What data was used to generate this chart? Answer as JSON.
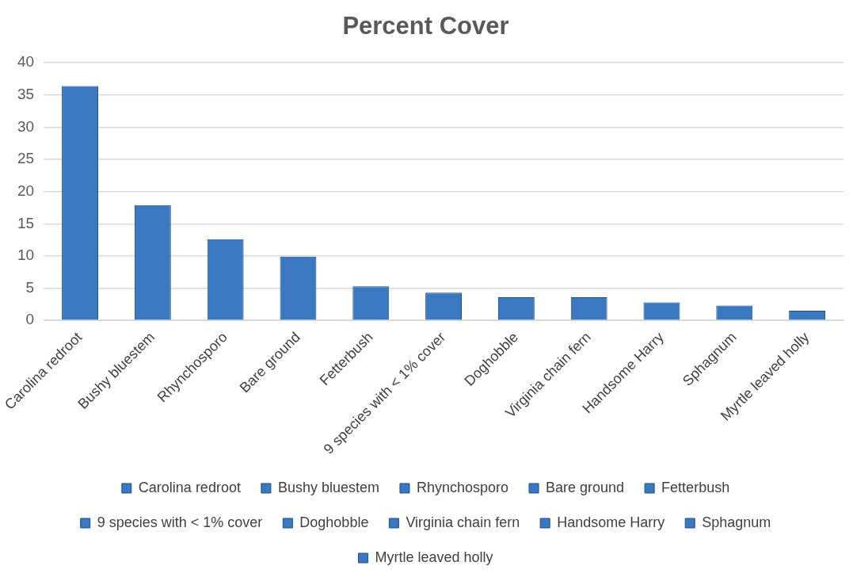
{
  "chart_data": {
    "type": "bar",
    "title": "Percent Cover",
    "categories": [
      "Carolina redroot",
      "Bushy bluestem",
      "Rhynchosporo",
      "Bare ground",
      "Fetterbush",
      "9 species with < 1% cover",
      "Doghobble",
      "Virginia chain fern",
      "Handsome Harry",
      "Sphagnum",
      "Myrtle leaved holly"
    ],
    "series": [
      {
        "name": "Carolina redroot",
        "color": "#3a78c2",
        "values": [
          36.4,
          null,
          null,
          null,
          null,
          null,
          null,
          null,
          null,
          null,
          null
        ]
      },
      {
        "name": "Bushy bluestem",
        "color": "#3a78c2",
        "values": [
          null,
          17.9,
          null,
          null,
          null,
          null,
          null,
          null,
          null,
          null,
          null
        ]
      },
      {
        "name": "Rhynchosporo",
        "color": "#3a78c2",
        "values": [
          null,
          null,
          12.6,
          null,
          null,
          null,
          null,
          null,
          null,
          null,
          null
        ]
      },
      {
        "name": "Bare ground",
        "color": "#3a78c2",
        "values": [
          null,
          null,
          null,
          9.9,
          null,
          null,
          null,
          null,
          null,
          null,
          null
        ]
      },
      {
        "name": "Fetterbush",
        "color": "#3a78c2",
        "values": [
          null,
          null,
          null,
          null,
          5.3,
          null,
          null,
          null,
          null,
          null,
          null
        ]
      },
      {
        "name": "9 species with < 1% cover",
        "color": "#3a78c2",
        "values": [
          null,
          null,
          null,
          null,
          null,
          4.3,
          null,
          null,
          null,
          null,
          null
        ]
      },
      {
        "name": "Doghobble",
        "color": "#3a78c2",
        "values": [
          null,
          null,
          null,
          null,
          null,
          null,
          3.6,
          null,
          null,
          null,
          null
        ]
      },
      {
        "name": "Virginia chain fern",
        "color": "#3a78c2",
        "values": [
          null,
          null,
          null,
          null,
          null,
          null,
          null,
          3.6,
          null,
          null,
          null
        ]
      },
      {
        "name": "Handsome Harry",
        "color": "#3a78c2",
        "values": [
          null,
          null,
          null,
          null,
          null,
          null,
          null,
          null,
          2.8,
          null,
          null
        ]
      },
      {
        "name": "Sphagnum",
        "color": "#3a78c2",
        "values": [
          null,
          null,
          null,
          null,
          null,
          null,
          null,
          null,
          null,
          2.3,
          null
        ]
      },
      {
        "name": "Myrtle leaved holly",
        "color": "#3a78c2",
        "values": [
          null,
          null,
          null,
          null,
          null,
          null,
          null,
          null,
          null,
          null,
          1.5
        ]
      }
    ],
    "ylim": [
      0,
      40
    ],
    "yticks": [
      0,
      5,
      10,
      15,
      20,
      25,
      30,
      35,
      40
    ],
    "grid": "y",
    "legend": "bottom"
  }
}
